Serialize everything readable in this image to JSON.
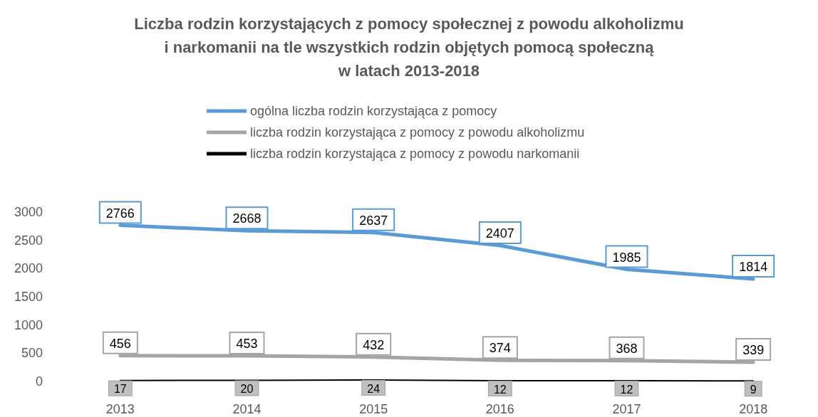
{
  "chart_data": {
    "type": "line",
    "title": "Liczba rodzin korzystających z pomocy społecznej z powodu alkoholizmu\ni narkomanii na tle wszystkich rodzin objętych pomocą społeczną\nw latach 2013-2018",
    "categories": [
      "2013",
      "2014",
      "2015",
      "2016",
      "2017",
      "2018"
    ],
    "series": [
      {
        "name": "ogólna liczba rodzin korzystająca z pomocy",
        "color": "#5b9bd5",
        "values": [
          2766,
          2668,
          2637,
          2407,
          1985,
          1814
        ]
      },
      {
        "name": "liczba rodzin korzystająca z pomocy z powodu alkoholizmu",
        "color": "#a5a5a5",
        "values": [
          456,
          453,
          432,
          374,
          368,
          339
        ]
      },
      {
        "name": "liczba rodzin korzystająca z pomocy z powodu narkomanii",
        "color": "#000000",
        "values": [
          17,
          20,
          24,
          12,
          12,
          9
        ]
      }
    ],
    "ylim": [
      0,
      3000
    ],
    "yticks": [
      0,
      500,
      1000,
      1500,
      2000,
      2500,
      3000
    ],
    "grid": false,
    "legend": "top",
    "marker": "none",
    "data_labels": true
  }
}
